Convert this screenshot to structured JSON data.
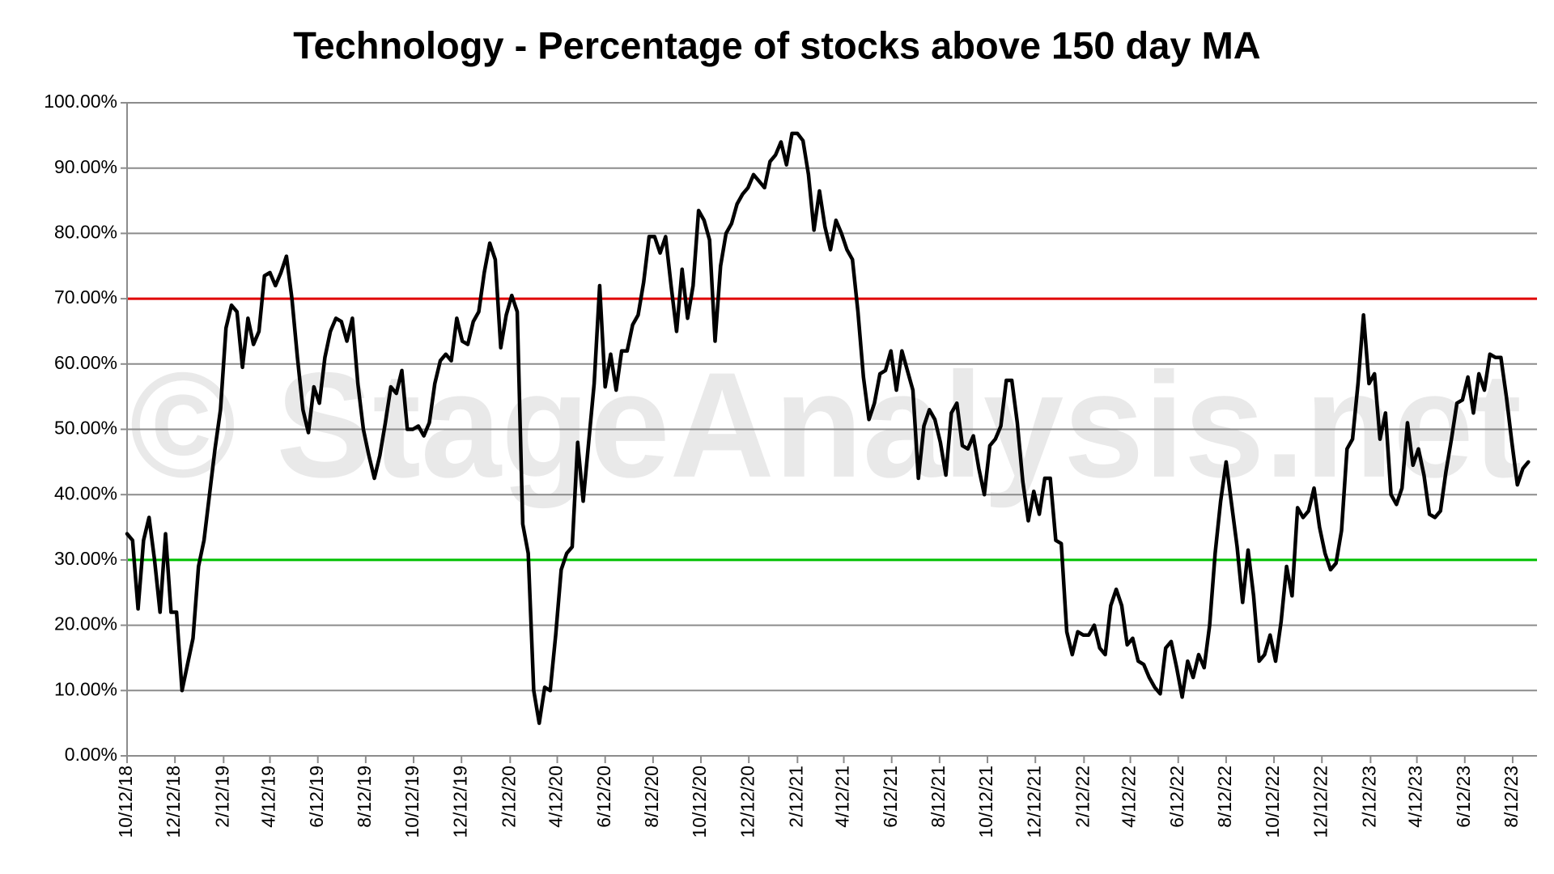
{
  "chart_data": {
    "type": "line",
    "title": "Technology - Percentage of stocks above 150 day MA",
    "watermark": "© StageAnalysis.net",
    "color": "#000000",
    "grid": true,
    "ylim": [
      0,
      100
    ],
    "yticks": [
      {
        "value": 0,
        "label": "0.00%"
      },
      {
        "value": 10,
        "label": "10.00%"
      },
      {
        "value": 20,
        "label": "20.00%"
      },
      {
        "value": 30,
        "label": "30.00%"
      },
      {
        "value": 40,
        "label": "40.00%"
      },
      {
        "value": 50,
        "label": "50.00%"
      },
      {
        "value": 60,
        "label": "60.00%"
      },
      {
        "value": 70,
        "label": "70.00%"
      },
      {
        "value": 80,
        "label": "80.00%"
      },
      {
        "value": 90,
        "label": "90.00%"
      },
      {
        "value": 100,
        "label": "100.00%"
      }
    ],
    "xlim": [
      "10/12/18",
      "9/12/23"
    ],
    "xticks": [
      "10/12/18",
      "12/12/18",
      "2/12/19",
      "4/12/19",
      "6/12/19",
      "8/12/19",
      "10/12/19",
      "12/12/19",
      "2/12/20",
      "4/12/20",
      "6/12/20",
      "8/12/20",
      "10/12/20",
      "12/12/20",
      "2/12/21",
      "4/12/21",
      "6/12/21",
      "8/12/21",
      "10/12/21",
      "12/12/21",
      "2/12/22",
      "4/12/22",
      "6/12/22",
      "8/12/22",
      "10/12/22",
      "12/12/22",
      "2/12/23",
      "4/12/23",
      "6/12/23",
      "8/12/23"
    ],
    "reference_lines": [
      {
        "value": 70,
        "color": "#e00000"
      },
      {
        "value": 30,
        "color": "#00c000"
      }
    ],
    "x": [
      "10/12/18",
      "10/19/18",
      "10/26/18",
      "11/2/18",
      "11/9/18",
      "11/16/18",
      "11/23/18",
      "11/30/18",
      "12/7/18",
      "12/14/18",
      "12/21/18",
      "12/28/18",
      "1/4/19",
      "1/11/19",
      "1/18/19",
      "1/25/19",
      "2/1/19",
      "2/8/19",
      "2/15/19",
      "2/22/19",
      "3/1/19",
      "3/8/19",
      "3/15/19",
      "3/22/19",
      "3/29/19",
      "4/5/19",
      "4/12/19",
      "4/19/19",
      "4/26/19",
      "5/3/19",
      "5/10/19",
      "5/17/19",
      "5/24/19",
      "5/31/19",
      "6/7/19",
      "6/14/19",
      "6/21/19",
      "6/28/19",
      "7/5/19",
      "7/12/19",
      "7/19/19",
      "7/26/19",
      "8/2/19",
      "8/9/19",
      "8/16/19",
      "8/23/19",
      "8/30/19",
      "9/6/19",
      "9/13/19",
      "9/20/19",
      "9/27/19",
      "10/4/19",
      "10/11/19",
      "10/18/19",
      "10/25/19",
      "11/1/19",
      "11/8/19",
      "11/15/19",
      "11/22/19",
      "11/29/19",
      "12/6/19",
      "12/13/19",
      "12/20/19",
      "12/27/19",
      "1/3/20",
      "1/10/20",
      "1/17/20",
      "1/24/20",
      "1/31/20",
      "2/7/20",
      "2/14/20",
      "2/21/20",
      "2/28/20",
      "3/6/20",
      "3/13/20",
      "3/20/20",
      "3/27/20",
      "4/3/20",
      "4/10/20",
      "4/17/20",
      "4/24/20",
      "5/1/20",
      "5/8/20",
      "5/15/20",
      "5/22/20",
      "5/29/20",
      "6/5/20",
      "6/12/20",
      "6/19/20",
      "6/26/20",
      "7/3/20",
      "7/10/20",
      "7/17/20",
      "7/24/20",
      "7/31/20",
      "8/7/20",
      "8/14/20",
      "8/21/20",
      "8/28/20",
      "9/4/20",
      "9/11/20",
      "9/18/20",
      "9/25/20",
      "10/2/20",
      "10/9/20",
      "10/16/20",
      "10/23/20",
      "10/30/20",
      "11/6/20",
      "11/13/20",
      "11/20/20",
      "11/27/20",
      "12/4/20",
      "12/11/20",
      "12/18/20",
      "12/25/20",
      "1/1/21",
      "1/8/21",
      "1/15/21",
      "1/22/21",
      "1/29/21",
      "2/5/21",
      "2/12/21",
      "2/19/21",
      "2/26/21",
      "3/5/21",
      "3/12/21",
      "3/19/21",
      "3/26/21",
      "4/2/21",
      "4/9/21",
      "4/16/21",
      "4/23/21",
      "4/30/21",
      "5/7/21",
      "5/14/21",
      "5/21/21",
      "5/28/21",
      "6/4/21",
      "6/11/21",
      "6/18/21",
      "6/25/21",
      "7/2/21",
      "7/9/21",
      "7/16/21",
      "7/23/21",
      "7/30/21",
      "8/6/21",
      "8/13/21",
      "8/20/21",
      "8/27/21",
      "9/3/21",
      "9/10/21",
      "9/17/21",
      "9/24/21",
      "10/1/21",
      "10/8/21",
      "10/15/21",
      "10/22/21",
      "10/29/21",
      "11/5/21",
      "11/12/21",
      "11/19/21",
      "11/26/21",
      "12/3/21",
      "12/10/21",
      "12/17/21",
      "12/24/21",
      "12/31/21",
      "1/7/22",
      "1/14/22",
      "1/21/22",
      "1/28/22",
      "2/4/22",
      "2/11/22",
      "2/18/22",
      "2/25/22",
      "3/4/22",
      "3/11/22",
      "3/18/22",
      "3/25/22",
      "4/1/22",
      "4/8/22",
      "4/15/22",
      "4/22/22",
      "4/29/22",
      "5/6/22",
      "5/13/22",
      "5/20/22",
      "5/27/22",
      "6/3/22",
      "6/10/22",
      "6/17/22",
      "6/24/22",
      "7/1/22",
      "7/8/22",
      "7/15/22",
      "7/22/22",
      "7/29/22",
      "8/5/22",
      "8/12/22",
      "8/19/22",
      "8/26/22",
      "9/2/22",
      "9/9/22",
      "9/16/22",
      "9/23/22",
      "9/30/22",
      "10/7/22",
      "10/14/22",
      "10/21/22",
      "10/28/22",
      "11/4/22",
      "11/11/22",
      "11/18/22",
      "11/25/22",
      "12/2/22",
      "12/9/22",
      "12/16/22",
      "12/23/22",
      "12/30/22",
      "1/6/23",
      "1/13/23",
      "1/20/23",
      "1/27/23",
      "2/3/23",
      "2/10/23",
      "2/17/23",
      "2/24/23",
      "3/3/23",
      "3/10/23",
      "3/17/23",
      "3/24/23",
      "3/31/23",
      "4/7/23",
      "4/14/23",
      "4/21/23",
      "4/28/23",
      "5/5/23",
      "5/12/23",
      "5/19/23",
      "5/26/23",
      "6/2/23",
      "6/9/23",
      "6/16/23",
      "6/23/23",
      "6/30/23",
      "7/7/23",
      "7/14/23",
      "7/21/23",
      "7/28/23",
      "8/4/23",
      "8/11/23",
      "8/18/23",
      "8/25/23",
      "9/1/23"
    ],
    "values": [
      34,
      33,
      22.5,
      33,
      36.5,
      30,
      22,
      34,
      22,
      22,
      10,
      14,
      18,
      29,
      33,
      40,
      47,
      53,
      65.5,
      69,
      68,
      59.5,
      67,
      63,
      65,
      73.5,
      74,
      72,
      74,
      76.5,
      70,
      61,
      53,
      49.5,
      56.5,
      54,
      61,
      65,
      67,
      66.5,
      63.5,
      67,
      57,
      50,
      46,
      42.5,
      46,
      51,
      56.5,
      55.5,
      59,
      50,
      50,
      50.5,
      49,
      51,
      57,
      60.5,
      61.5,
      60.5,
      67,
      63.5,
      63,
      66.5,
      68,
      74,
      78.5,
      76,
      62.5,
      67.5,
      70.5,
      68,
      35.5,
      31,
      10,
      5,
      10.5,
      10,
      18.5,
      28.5,
      31,
      32,
      48,
      39,
      48,
      57,
      72,
      56.5,
      61.5,
      56,
      62,
      62,
      66,
      67.5,
      72.5,
      79.5,
      79.5,
      77,
      79.5,
      72,
      65,
      74.5,
      67,
      72,
      83.5,
      82,
      79,
      63.5,
      75,
      80,
      81.5,
      84.5,
      86,
      87,
      89,
      88,
      87,
      91,
      92,
      94,
      90.5,
      95.3,
      95.3,
      94.2,
      89,
      80.5,
      86.5,
      81,
      77.5,
      82,
      80,
      77.5,
      76,
      68,
      58,
      51.5,
      54,
      58.5,
      59,
      62,
      56,
      62,
      59,
      56,
      42.5,
      50.5,
      53,
      51.5,
      48,
      43,
      52.5,
      54,
      47.5,
      47,
      49,
      44,
      40,
      47.5,
      48.5,
      50.5,
      57.5,
      57.5,
      51,
      42,
      36,
      40.5,
      37,
      42.5,
      42.5,
      33,
      32.5,
      19,
      15.5,
      19,
      18.5,
      18.5,
      20,
      16.5,
      15.5,
      23,
      25.5,
      23,
      17,
      18,
      14.5,
      14,
      12,
      10.5,
      9.5,
      16.5,
      17.5,
      13.5,
      9,
      14.5,
      12,
      15.5,
      13.5,
      20,
      31,
      39,
      45,
      38.5,
      32,
      23.5,
      31.5,
      24.5,
      14.5,
      15.5,
      18.5,
      14.5,
      20.5,
      29,
      24.5,
      38,
      36.5,
      37.5,
      41,
      35,
      31,
      28.5,
      29.5,
      34.5,
      47,
      48.5,
      57,
      67.5,
      57,
      58.5,
      48.5,
      52.5,
      40,
      38.5,
      41,
      51,
      44.5,
      47,
      43,
      37,
      36.5,
      37.5,
      43.5,
      48.5,
      54,
      54.5,
      58,
      52.5,
      58.5,
      56,
      61.5,
      61,
      61,
      55,
      48,
      41.5,
      44,
      45
    ]
  }
}
